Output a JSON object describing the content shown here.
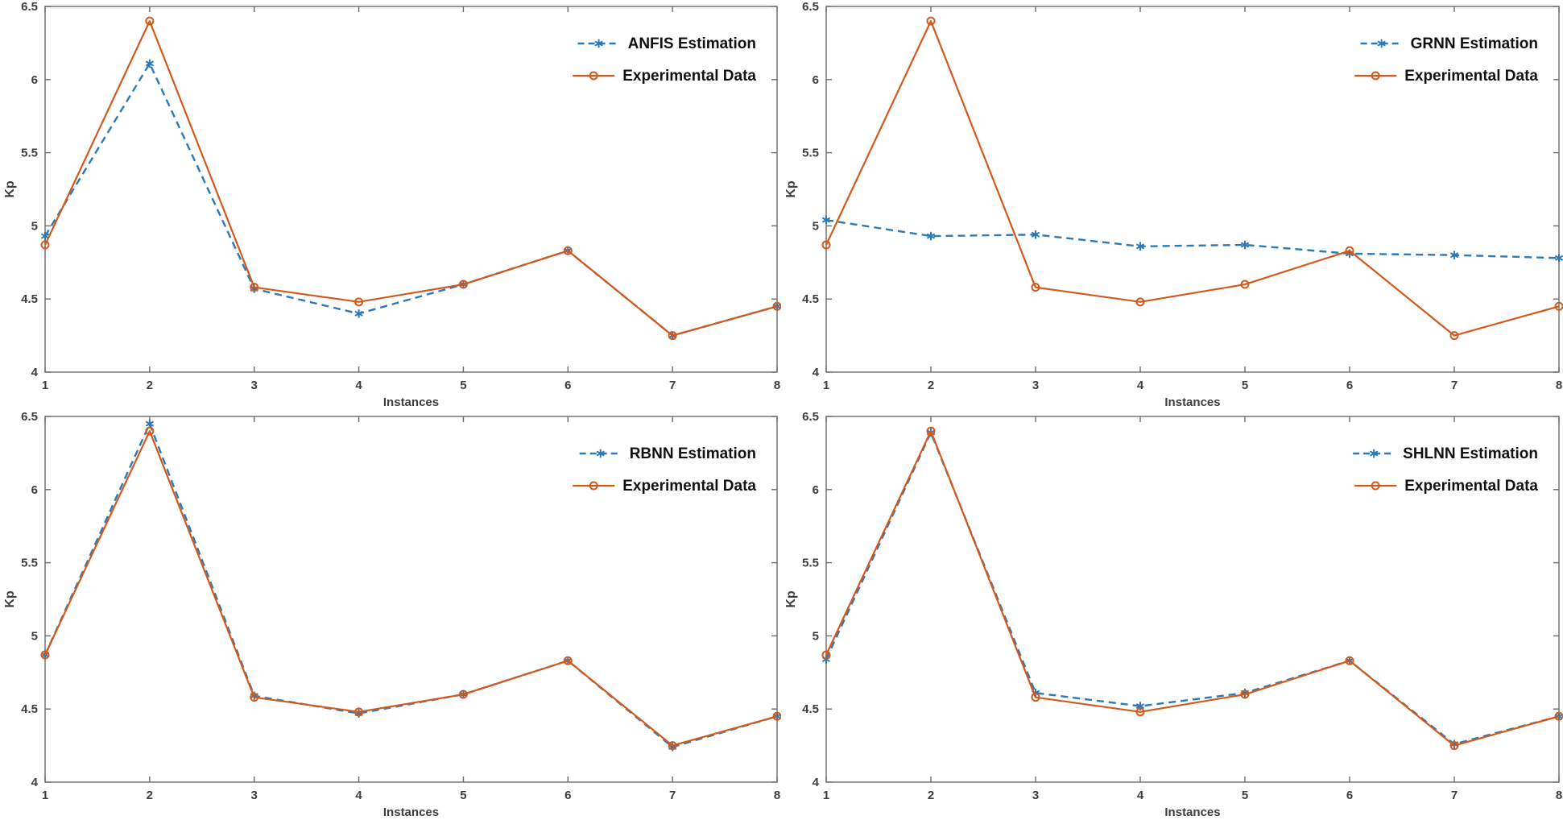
{
  "figure_title": "",
  "style": {
    "background": "#ffffff",
    "estimation_color": "#2a7ab9",
    "experimental_color": "#d2591c",
    "axis_color": "#6b6b6b",
    "tick_label_color": "#3d3d3d",
    "axis_label_color": "#3d3d3d",
    "legend_text_color": "#111111"
  },
  "chart_data": [
    {
      "type": "line",
      "panel": "top-left",
      "xlabel": "Instances",
      "ylabel": "Kp",
      "xlim": [
        1,
        8
      ],
      "ylim": [
        4,
        6.5
      ],
      "xticks": [
        1,
        2,
        3,
        4,
        5,
        6,
        7,
        8
      ],
      "yticks": [
        4,
        4.5,
        5,
        5.5,
        6,
        6.5
      ],
      "x": [
        1,
        2,
        3,
        4,
        5,
        6,
        7,
        8
      ],
      "grid": false,
      "legend_position": "top-right",
      "series": [
        {
          "name": "ANFIS Estimation",
          "role": "estimation",
          "line": "dashed",
          "marker": "asterisk",
          "values": [
            4.93,
            6.11,
            4.57,
            4.4,
            4.6,
            4.83,
            4.25,
            4.45
          ]
        },
        {
          "name": "Experimental Data",
          "role": "experimental",
          "line": "solid",
          "marker": "circle",
          "values": [
            4.87,
            6.4,
            4.58,
            4.48,
            4.6,
            4.83,
            4.25,
            4.45
          ]
        }
      ]
    },
    {
      "type": "line",
      "panel": "top-right",
      "xlabel": "Instances",
      "ylabel": "Kp",
      "xlim": [
        1,
        8
      ],
      "ylim": [
        4,
        6.5
      ],
      "xticks": [
        1,
        2,
        3,
        4,
        5,
        6,
        7,
        8
      ],
      "yticks": [
        4,
        4.5,
        5,
        5.5,
        6,
        6.5
      ],
      "x": [
        1,
        2,
        3,
        4,
        5,
        6,
        7,
        8
      ],
      "grid": false,
      "legend_position": "top-right",
      "series": [
        {
          "name": "GRNN Estimation",
          "role": "estimation",
          "line": "dashed",
          "marker": "asterisk",
          "values": [
            5.04,
            4.93,
            4.94,
            4.86,
            4.87,
            4.81,
            4.8,
            4.78
          ]
        },
        {
          "name": "Experimental Data",
          "role": "experimental",
          "line": "solid",
          "marker": "circle",
          "values": [
            4.87,
            6.4,
            4.58,
            4.48,
            4.6,
            4.83,
            4.25,
            4.45
          ]
        }
      ]
    },
    {
      "type": "line",
      "panel": "bottom-left",
      "xlabel": "Instances",
      "ylabel": "Kp",
      "xlim": [
        1,
        8
      ],
      "ylim": [
        4,
        6.5
      ],
      "xticks": [
        1,
        2,
        3,
        4,
        5,
        6,
        7,
        8
      ],
      "yticks": [
        4,
        4.5,
        5,
        5.5,
        6,
        6.5
      ],
      "x": [
        1,
        2,
        3,
        4,
        5,
        6,
        7,
        8
      ],
      "grid": false,
      "legend_position": "top-right",
      "series": [
        {
          "name": "RBNN Estimation",
          "role": "estimation",
          "line": "dashed",
          "marker": "asterisk",
          "values": [
            4.87,
            6.45,
            4.59,
            4.47,
            4.6,
            4.83,
            4.24,
            4.45
          ]
        },
        {
          "name": "Experimental Data",
          "role": "experimental",
          "line": "solid",
          "marker": "circle",
          "values": [
            4.87,
            6.4,
            4.58,
            4.48,
            4.6,
            4.83,
            4.25,
            4.45
          ]
        }
      ]
    },
    {
      "type": "line",
      "panel": "bottom-right",
      "xlabel": "Instances",
      "ylabel": "Kp",
      "xlim": [
        1,
        8
      ],
      "ylim": [
        4,
        6.5
      ],
      "xticks": [
        1,
        2,
        3,
        4,
        5,
        6,
        7,
        8
      ],
      "yticks": [
        4,
        4.5,
        5,
        5.5,
        6,
        6.5
      ],
      "x": [
        1,
        2,
        3,
        4,
        5,
        6,
        7,
        8
      ],
      "grid": false,
      "legend_position": "top-right",
      "series": [
        {
          "name": "SHLNN Estimation",
          "role": "estimation",
          "line": "dashed",
          "marker": "asterisk",
          "values": [
            4.84,
            6.39,
            4.61,
            4.52,
            4.61,
            4.83,
            4.26,
            4.45
          ]
        },
        {
          "name": "Experimental Data",
          "role": "experimental",
          "line": "solid",
          "marker": "circle",
          "values": [
            4.87,
            6.4,
            4.58,
            4.48,
            4.6,
            4.83,
            4.25,
            4.45
          ]
        }
      ]
    }
  ]
}
